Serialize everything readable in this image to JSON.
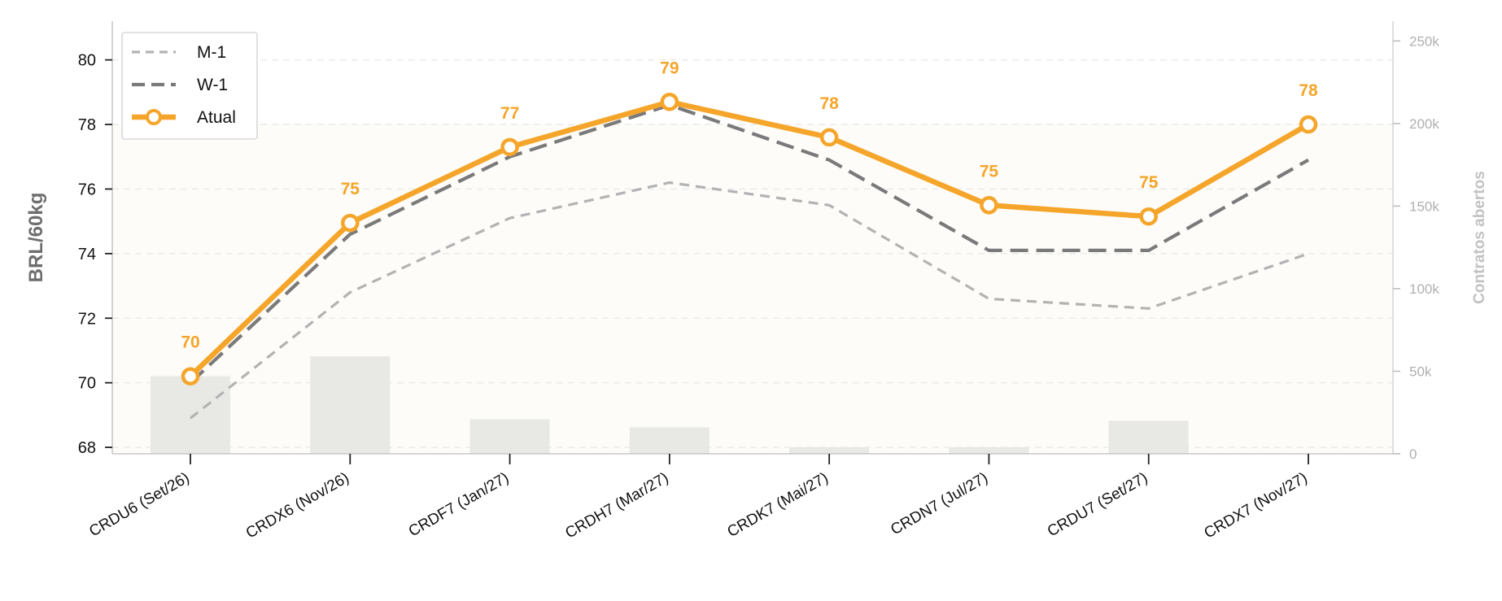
{
  "chart_data": {
    "type": "line",
    "categories": [
      "CRDU6 (Set/26)",
      "CRDX6 (Nov/26)",
      "CRDF7 (Jan/27)",
      "CRDH7 (Mar/27)",
      "CRDK7 (Mai/27)",
      "CRDN7 (Jul/27)",
      "CRDU7 (Set/27)",
      "CRDX7 (Nov/27)"
    ],
    "ylabel": "BRL/60kg",
    "y2label": "Contratos abertos",
    "ylim": [
      67.8,
      81.2
    ],
    "y2lim": [
      0,
      262000
    ],
    "yticks": [
      68,
      70,
      72,
      74,
      76,
      78,
      80
    ],
    "y2ticks": [
      {
        "value": 0,
        "label": "0"
      },
      {
        "value": 50000,
        "label": "50k"
      },
      {
        "value": 100000,
        "label": "100k"
      },
      {
        "value": 150000,
        "label": "150k"
      },
      {
        "value": 200000,
        "label": "200k"
      },
      {
        "value": 250000,
        "label": "250k"
      }
    ],
    "grid": true,
    "legend_position": "top-left",
    "series": [
      {
        "name": "M-1",
        "style": "dashed-light",
        "color": "#b3b3b3",
        "values": [
          68.9,
          72.8,
          75.1,
          76.2,
          75.5,
          72.6,
          72.3,
          74.0
        ]
      },
      {
        "name": "W-1",
        "style": "dashed-dark",
        "color": "#7a7a7a",
        "values": [
          70.0,
          74.6,
          77.0,
          78.6,
          76.9,
          74.1,
          74.1,
          76.9
        ]
      },
      {
        "name": "Atual",
        "style": "solid-marker",
        "color": "#f5a52a",
        "values": [
          70.2,
          74.95,
          77.3,
          78.7,
          77.6,
          75.5,
          75.15,
          78.0
        ],
        "labels": [
          "70",
          "75",
          "77",
          "79",
          "78",
          "75",
          "75",
          "78"
        ]
      }
    ],
    "bars": {
      "name": "Contratos abertos",
      "color": "#e8e8e4",
      "values": [
        47000,
        59000,
        21000,
        16000,
        4000,
        4000,
        20000,
        0
      ]
    }
  }
}
